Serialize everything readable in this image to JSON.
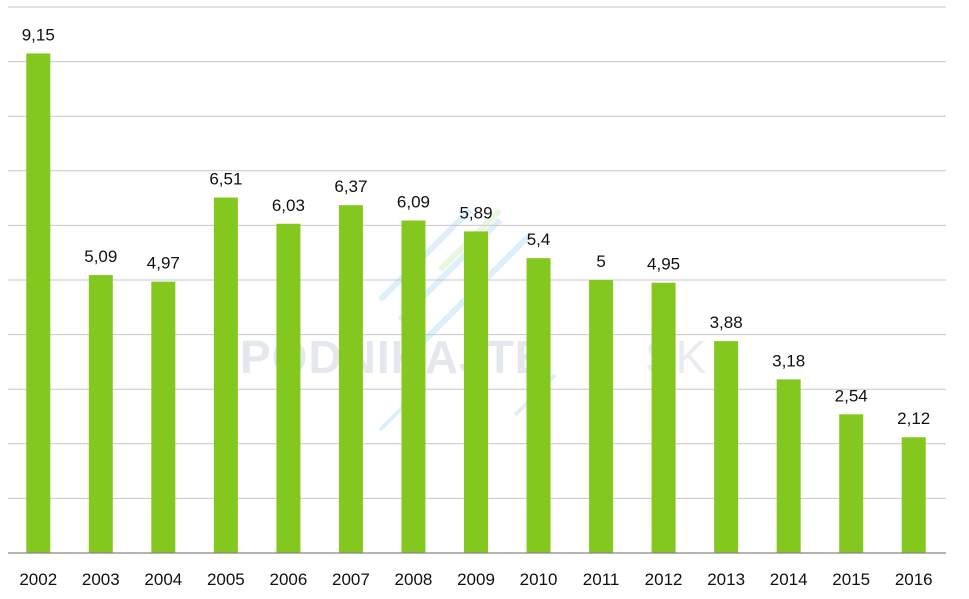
{
  "colors": {
    "bar": "#84c81f",
    "grid": "#c8c8c8",
    "axis": "#888888",
    "text": "#111111"
  },
  "watermark": {
    "brand": "PODNIKAJTE",
    "suffix": "SK"
  },
  "chart_data": {
    "type": "bar",
    "categories": [
      "2002",
      "2003",
      "2004",
      "2005",
      "2006",
      "2007",
      "2008",
      "2009",
      "2010",
      "2011",
      "2012",
      "2013",
      "2014",
      "2015",
      "2016"
    ],
    "values": [
      9.15,
      5.09,
      4.97,
      6.51,
      6.03,
      6.37,
      6.09,
      5.89,
      5.4,
      5,
      4.95,
      3.88,
      3.18,
      2.54,
      2.12
    ],
    "data_labels": [
      "9,15",
      "5,09",
      "4,97",
      "6,51",
      "6,03",
      "6,37",
      "6,09",
      "5,89",
      "5,4",
      "5",
      "4,95",
      "3,88",
      "3,18",
      "2,54",
      "2,12"
    ],
    "title": "",
    "xlabel": "",
    "ylabel": "",
    "ylim": [
      0,
      10
    ],
    "grid_step": 1,
    "grid": true,
    "legend": "none"
  }
}
